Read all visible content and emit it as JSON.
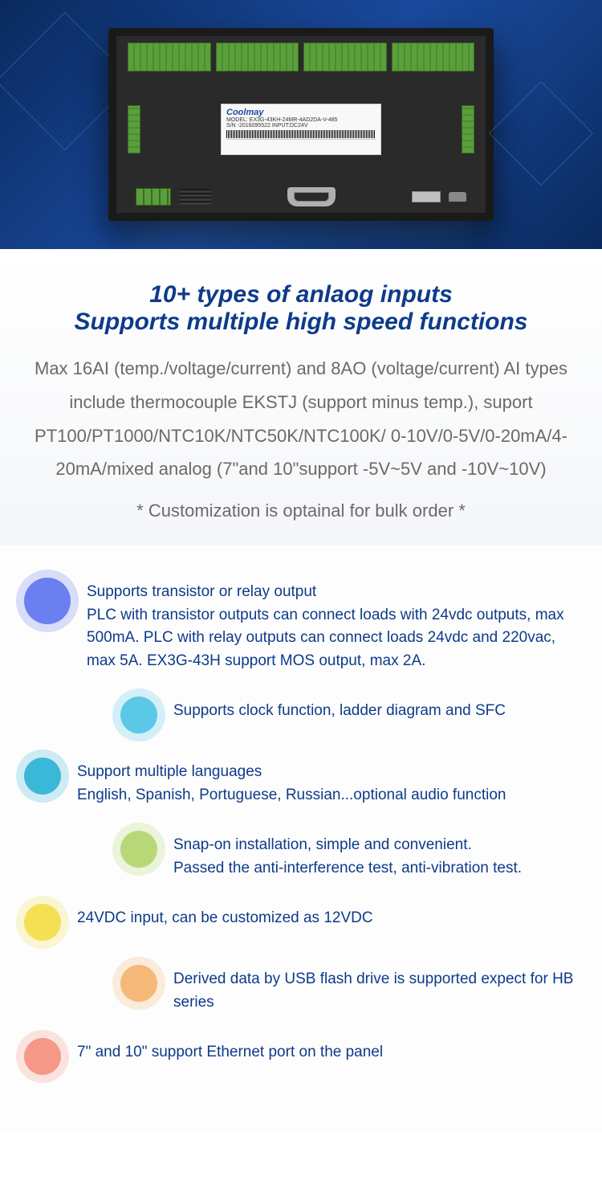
{
  "device_label": {
    "brand": "Coolmay",
    "model_line": "MODEL: EX3G-43KH-24MR-4AD2DA-V-485",
    "sn_line": "S/N -2016095522    INPUT:DC24V"
  },
  "headline": {
    "line1": "10+ types of anlaog inputs",
    "line2": "Supports multiple high speed functions"
  },
  "body": "Max 16AI (temp./voltage/current) and 8AO (voltage/current) AI types include thermocouple EKSTJ (support minus temp.), suport PT100/PT1000/NTC10K/NTC50K/NTC100K/ 0-10V/0-5V/0-20mA/4-20mA/mixed analog (7\"and 10\"support -5V~5V and -10V~10V)",
  "note": "*  Customization is optainal for bulk order  *",
  "features": [
    {
      "title": "Supports transistor or relay output",
      "text": "PLC with transistor outputs can connect loads with 24vdc outputs, max 500mA. PLC with relay outputs can  connect loads 24vdc and 220vac, max 5A. EX3G-43H support MOS output, max 2A.",
      "color": "#6b7ff0",
      "offset": false,
      "size": "lg"
    },
    {
      "title": "",
      "text": "Supports clock function, ladder diagram and SFC",
      "color": "#5bc8e8",
      "offset": true,
      "size": "sm"
    },
    {
      "title": "Support multiple languages",
      "text": "English, Spanish, Portuguese, Russian...optional audio function",
      "color": "#3bb8d8",
      "offset": false,
      "size": "sm"
    },
    {
      "title": "",
      "text": "Snap-on installation, simple and convenient.\nPassed the anti-interference test, anti-vibration test.",
      "color": "#b8d878",
      "offset": true,
      "size": "sm"
    },
    {
      "title": "",
      "text": "24VDC input, can be customized as 12VDC",
      "color": "#f5e055",
      "offset": false,
      "size": "sm"
    },
    {
      "title": "",
      "text": "Derived data by USB flash drive is supported expect for HB series",
      "color": "#f5b878",
      "offset": true,
      "size": "sm"
    },
    {
      "title": "",
      "text": "7\" and 10\" support Ethernet port on the panel",
      "color": "#f59888",
      "offset": false,
      "size": "sm"
    }
  ]
}
